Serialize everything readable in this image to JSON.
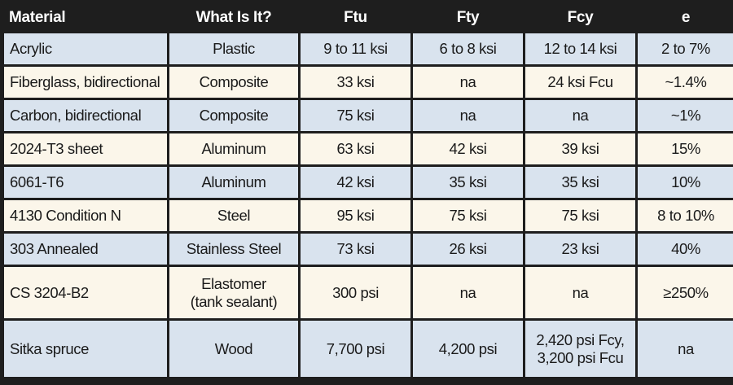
{
  "headers": [
    "Material",
    "What Is It?",
    "Ftu",
    "Fty",
    "Fcy",
    "e"
  ],
  "rows": [
    {
      "material": "Acrylic",
      "type": "Plastic",
      "ftu": "9 to 11 ksi",
      "fty": "6 to 8 ksi",
      "fcy": "12 to 14 ksi",
      "e": "2 to 7%"
    },
    {
      "material": "Fiberglass, bidirectional",
      "type": "Composite",
      "ftu": "33 ksi",
      "fty": "na",
      "fcy": "24 ksi Fcu",
      "e": "~1.4%"
    },
    {
      "material": "Carbon, bidirectional",
      "type": "Composite",
      "ftu": "75 ksi",
      "fty": "na",
      "fcy": "na",
      "e": "~1%"
    },
    {
      "material": "2024-T3 sheet",
      "type": "Aluminum",
      "ftu": "63 ksi",
      "fty": "42 ksi",
      "fcy": "39 ksi",
      "e": "15%"
    },
    {
      "material": "6061-T6",
      "type": "Aluminum",
      "ftu": "42 ksi",
      "fty": "35 ksi",
      "fcy": "35 ksi",
      "e": "10%"
    },
    {
      "material": "4130 Condition N",
      "type": "Steel",
      "ftu": "95 ksi",
      "fty": "75 ksi",
      "fcy": "75 ksi",
      "e": "8 to 10%"
    },
    {
      "material": "303 Annealed",
      "type": "Stainless Steel",
      "ftu": "73 ksi",
      "fty": "26 ksi",
      "fcy": "23 ksi",
      "e": "40%"
    },
    {
      "material": "CS 3204-B2",
      "type_line1": "Elastomer",
      "type_line2": "(tank sealant)",
      "ftu": "300 psi",
      "fty": "na",
      "fcy": "na",
      "e": "≥250%"
    },
    {
      "material": "Sitka spruce",
      "type": "Wood",
      "ftu": "7,700 psi",
      "fty": "4,200 psi",
      "fcy_line1": "2,420 psi Fcy,",
      "fcy_line2": "3,200 psi Fcu",
      "e": "na"
    }
  ],
  "colors": {
    "header_bg": "#1e1e1e",
    "header_text": "#ffffff",
    "row_blue": "#d9e3ee",
    "row_cream": "#fbf6ea"
  }
}
